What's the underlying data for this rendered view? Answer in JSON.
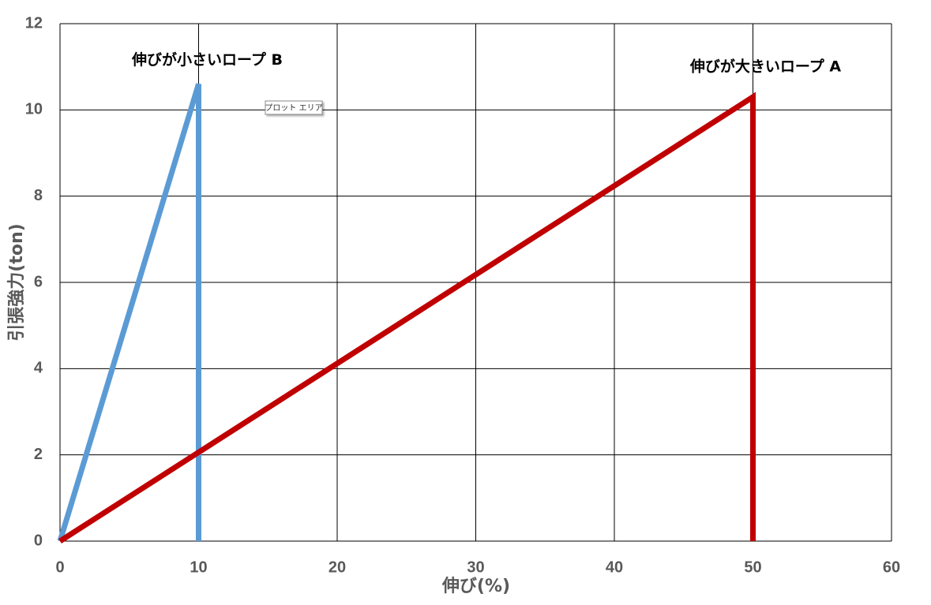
{
  "chart_data": {
    "type": "line",
    "x_label": "伸び(%)",
    "y_label": "引張強力(ton)",
    "series": [
      {
        "name": "伸びが小さいロープ B",
        "color": "#5b9bd5",
        "x": [
          0,
          10,
          10
        ],
        "values": [
          0,
          10.6,
          0
        ]
      },
      {
        "name": "伸びが大きいロープ A",
        "color": "#c00000",
        "x": [
          0,
          50,
          50
        ],
        "values": [
          0,
          10.3,
          0
        ]
      }
    ],
    "xlim": [
      0,
      60
    ],
    "xticks": [
      0,
      10,
      20,
      30,
      40,
      50,
      60
    ],
    "ylim": [
      0,
      12
    ],
    "yticks": [
      0,
      2,
      4,
      6,
      8,
      10,
      12
    ],
    "grid": true,
    "tooltip": "プロット エリア"
  }
}
